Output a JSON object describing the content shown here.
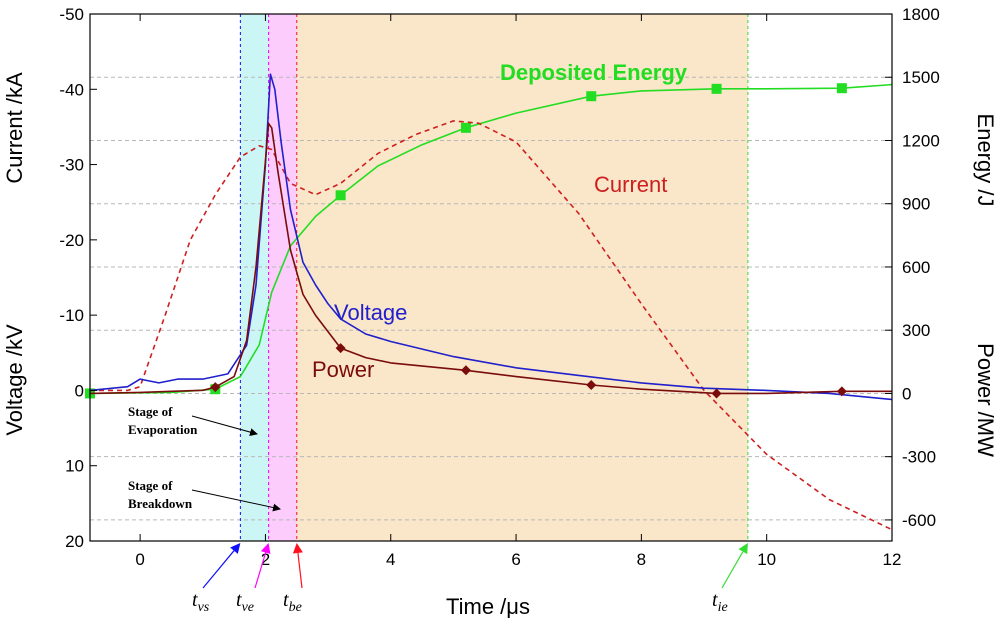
{
  "chart_data": {
    "type": "line",
    "xlabel": "Time /μs",
    "x_range": [
      -0.8,
      12
    ],
    "x_ticks": [
      0,
      2,
      4,
      6,
      8,
      10,
      12
    ],
    "left_axis": {
      "label_top": "Current /kA",
      "label_bottom": "Voltage /kV",
      "range_top_to_bottom": [
        -50,
        20
      ],
      "ticks": [
        -50,
        -40,
        -30,
        -20,
        -10,
        0,
        10,
        20
      ]
    },
    "right_axis": {
      "label_top": "Energy /J",
      "label_bottom": "Power /MW",
      "range_top_to_bottom": [
        1800,
        -700
      ],
      "ticks": [
        1800,
        1500,
        1200,
        900,
        600,
        300,
        0,
        -300,
        -600
      ]
    },
    "grid": "horizontal dashed",
    "stages": [
      {
        "name": "evaporation",
        "x_start": 1.6,
        "x_end": 2.05,
        "color": "#ccf5f5"
      },
      {
        "name": "breakdown",
        "x_start": 2.05,
        "x_end": 2.5,
        "color": "#fcccfc"
      },
      {
        "name": "post",
        "x_start": 2.5,
        "x_end": 9.7,
        "color": "#fae6c8"
      }
    ],
    "stage_labels": [
      {
        "lines": [
          "Stage of",
          "Evaporation"
        ]
      },
      {
        "lines": [
          "Stage of",
          "Breakdown"
        ]
      }
    ],
    "time_markers": [
      {
        "base": "t",
        "sub": "vs",
        "x": 1.6,
        "color": "#1010ff"
      },
      {
        "base": "t",
        "sub": "ve",
        "x": 2.05,
        "color": "#ff00ff"
      },
      {
        "base": "t",
        "sub": "be",
        "x": 2.5,
        "color": "#ff1020"
      },
      {
        "base": "t",
        "sub": "ie",
        "x": 9.7,
        "color": "#33dd33"
      }
    ],
    "series": [
      {
        "name": "Deposited Energy",
        "axis": "right",
        "color": "#22dd22",
        "style": "solid",
        "marker": "square",
        "x": [
          -0.8,
          0.5,
          1.2,
          1.6,
          1.9,
          2.1,
          2.4,
          2.8,
          3.2,
          3.8,
          4.5,
          5.2,
          6.0,
          7.2,
          8.0,
          9.2,
          10.0,
          11.2,
          12.0
        ],
        "y": [
          0,
          5,
          20,
          80,
          230,
          480,
          700,
          840,
          940,
          1080,
          1180,
          1260,
          1330,
          1410,
          1435,
          1445,
          1445,
          1448,
          1465
        ],
        "marker_x": [
          -0.8,
          1.2,
          3.2,
          5.2,
          7.2,
          9.2,
          11.2
        ],
        "marker_y": [
          0,
          20,
          940,
          1260,
          1410,
          1445,
          1448
        ]
      },
      {
        "name": "Current",
        "axis": "left",
        "color": "#cc2020",
        "style": "dashed",
        "x": [
          -0.8,
          -0.2,
          0,
          0.4,
          0.8,
          1.2,
          1.6,
          1.9,
          2.1,
          2.4,
          2.8,
          3.2,
          3.8,
          4.4,
          5.0,
          5.4,
          6.0,
          7.0,
          8.0,
          9.0,
          10.0,
          11.0,
          12.0
        ],
        "y": [
          0,
          0,
          -0.5,
          -10,
          -20,
          -26,
          -31,
          -32.5,
          -32,
          -27.5,
          -26,
          -27.5,
          -31.5,
          -34,
          -35.8,
          -35.5,
          -33,
          -23.5,
          -11.5,
          0,
          8.5,
          14.5,
          18.5
        ]
      },
      {
        "name": "Voltage",
        "axis": "left",
        "color": "#2020cc",
        "style": "solid",
        "x": [
          -0.8,
          -0.2,
          0,
          0.3,
          0.6,
          1.0,
          1.4,
          1.7,
          1.85,
          2.0,
          2.08,
          2.15,
          2.25,
          2.4,
          2.6,
          2.8,
          3.0,
          3.2,
          3.6,
          4.0,
          5.0,
          6.0,
          7.0,
          8.0,
          9.0,
          10.0,
          11.0,
          12.0
        ],
        "y": [
          0,
          -0.5,
          -1.5,
          -1,
          -1.5,
          -1.5,
          -2.2,
          -6,
          -14,
          -30,
          -42,
          -40,
          -33,
          -24,
          -17,
          -14,
          -11.5,
          -9.5,
          -7.5,
          -6.5,
          -4.5,
          -3,
          -2,
          -1,
          -0.3,
          0,
          0.4,
          1.2
        ]
      },
      {
        "name": "Power",
        "axis": "right",
        "color": "#7a0c0c",
        "style": "solid",
        "marker": "diamond",
        "x": [
          -0.8,
          0,
          0.5,
          1.0,
          1.2,
          1.5,
          1.7,
          1.85,
          2.0,
          2.05,
          2.1,
          2.2,
          2.4,
          2.6,
          2.8,
          3.2,
          3.6,
          4.0,
          5.2,
          6.0,
          7.2,
          8.0,
          9.2,
          10.0,
          11.2,
          12.0
        ],
        "y": [
          0,
          5,
          10,
          15,
          30,
          80,
          250,
          600,
          1100,
          1280,
          1260,
          1050,
          680,
          470,
          370,
          215,
          170,
          145,
          110,
          80,
          40,
          20,
          0,
          0,
          10,
          10
        ],
        "marker_x": [
          1.2,
          3.2,
          5.2,
          7.2,
          9.2,
          11.2
        ],
        "marker_y": [
          30,
          215,
          110,
          40,
          0,
          10
        ]
      }
    ]
  }
}
